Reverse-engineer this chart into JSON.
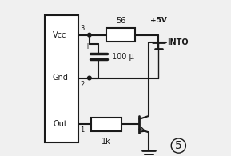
{
  "bg_color": "#f0f0f0",
  "line_color": "#1a1a1a",
  "box_color": "#ffffff",
  "lw": 1.5,
  "lw_thin": 1.0,
  "labels": {
    "vcc": "Vcc",
    "gnd": "Gnd",
    "out": "Out",
    "pin3": "3",
    "pin2": "2",
    "pin1": "1",
    "r1": "56",
    "r2": "1k",
    "cap": "100 μ",
    "cap_plus": "+",
    "vcc_supply": "+5V",
    "into": "INTO",
    "title_num": "5"
  }
}
